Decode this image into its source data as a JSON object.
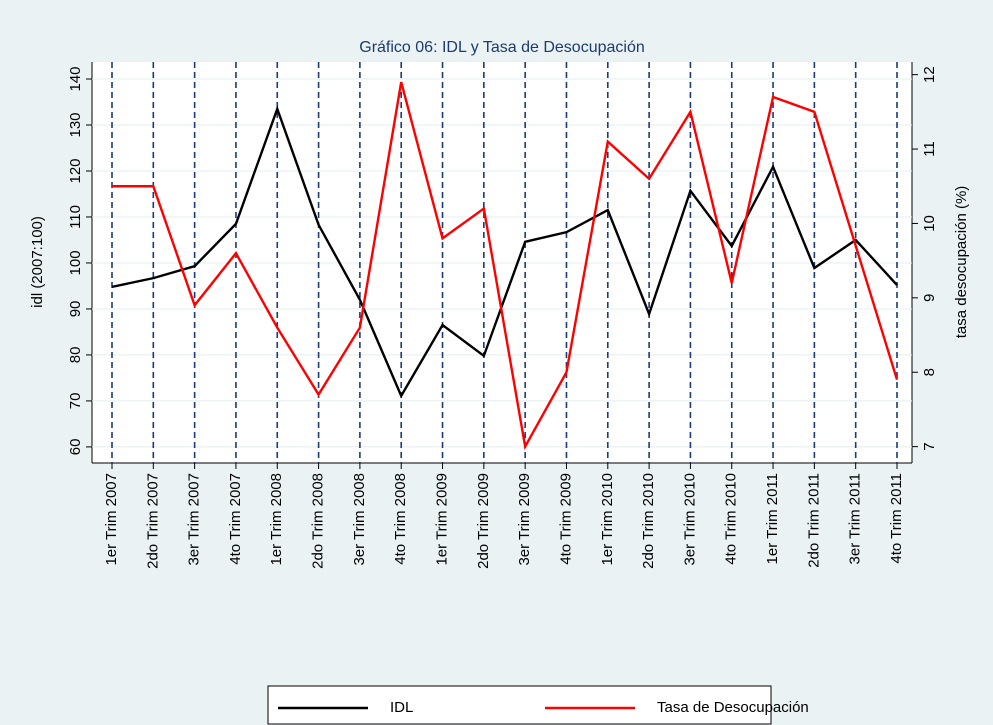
{
  "chart_data": {
    "type": "line",
    "title": "Gráfico 06: IDL y Tasa de Desocupación",
    "ylabel": "idl (2007:100)",
    "y2label": "tasa desocupación (%)",
    "categories": [
      "1er Trim 2007",
      "2do Trim 2007",
      "3er Trim 2007",
      "4to Trim 2007",
      "1er Trim 2008",
      "2do Trim 2008",
      "3er Trim 2008",
      "4to Trim 2008",
      "1er Trim 2009",
      "2do Trim 2009",
      "3er Trim 2009",
      "4to Trim 2009",
      "1er Trim 2010",
      "2do Trim 2010",
      "3er Trim 2010",
      "4to Trim 2010",
      "1er Trim 2011",
      "2do Trim 2011",
      "3er Trim 2011",
      "4to Trim 2011"
    ],
    "series": [
      {
        "name": "IDL",
        "color": "#000000",
        "values": [
          94.8,
          96.7,
          99.3,
          108.5,
          133.5,
          108.3,
          92,
          71.1,
          86.5,
          79.8,
          104.6,
          106.7,
          111.5,
          88.9,
          115.7,
          103.7,
          120.9,
          98.9,
          105,
          95.2
        ]
      },
      {
        "name": "Tasa de Desocupación",
        "color": "#ff0000",
        "axis": "y2",
        "values": [
          10.5,
          10.5,
          8.9,
          9.6,
          8.6,
          7.7,
          8.6,
          11.9,
          9.8,
          10.2,
          7,
          8,
          11.1,
          10.6,
          11.5,
          9.2,
          11.7,
          11.5,
          9.7,
          7.9
        ]
      }
    ],
    "ylim": [
      56.5,
      143.7
    ],
    "yticks": [
      60,
      70,
      80,
      90,
      100,
      110,
      120,
      130,
      140
    ],
    "y2lim": [
      6.78,
      12.17
    ],
    "y2ticks": [
      7,
      8,
      9,
      10,
      11,
      12
    ],
    "grid": true,
    "xlines": true,
    "legend": "bottom"
  }
}
